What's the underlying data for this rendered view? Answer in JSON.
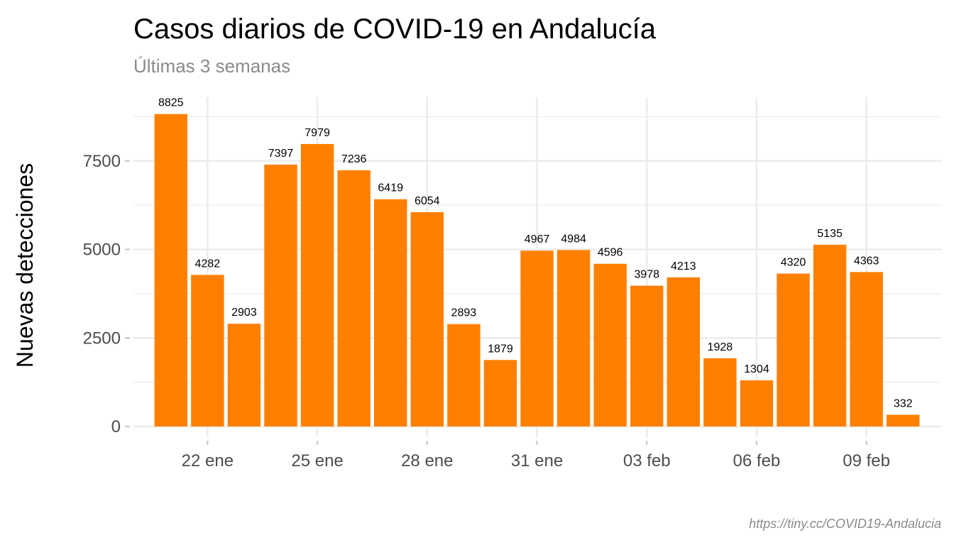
{
  "chart_data": {
    "type": "bar",
    "title": "Casos diarios de COVID-19 en Andalucía",
    "subtitle": "Últimas 3 semanas",
    "xlabel": "",
    "ylabel": "Nuevas detecciones",
    "caption": "https://tiny.cc/COVID19-Andalucia",
    "categories": [
      "2022-01-21",
      "2022-01-22",
      "2022-01-23",
      "2022-01-24",
      "2022-01-25",
      "2022-01-26",
      "2022-01-27",
      "2022-01-28",
      "2022-01-29",
      "2022-01-30",
      "2022-01-31",
      "2022-02-01",
      "2022-02-02",
      "2022-02-03",
      "2022-02-04",
      "2022-02-05",
      "2022-02-06",
      "2022-02-07",
      "2022-02-08",
      "2022-02-09",
      "2022-02-10"
    ],
    "values": [
      8825,
      4282,
      2903,
      7397,
      7979,
      7236,
      6419,
      6054,
      2893,
      1879,
      4967,
      4984,
      4596,
      3978,
      4213,
      1928,
      1304,
      4320,
      5135,
      4363,
      332
    ],
    "data_labels": [
      "8825",
      "4282",
      "2903",
      "7397",
      "7979",
      "7236",
      "6419",
      "6054",
      "2893",
      "1879",
      "4967",
      "4984",
      "4596",
      "3978",
      "4213",
      "1928",
      "1304",
      "4320",
      "5135",
      "4363",
      "332"
    ],
    "x_ticks": [
      {
        "at": "2022-01-22",
        "label": "22 ene"
      },
      {
        "at": "2022-01-25",
        "label": "25 ene"
      },
      {
        "at": "2022-01-28",
        "label": "28 ene"
      },
      {
        "at": "2022-01-31",
        "label": "31 ene"
      },
      {
        "at": "2022-02-03",
        "label": "03 feb"
      },
      {
        "at": "2022-02-06",
        "label": "06 feb"
      },
      {
        "at": "2022-02-09",
        "label": "09 feb"
      }
    ],
    "y_ticks": [
      {
        "value": 0,
        "label": "0"
      },
      {
        "value": 2500,
        "label": "2500"
      },
      {
        "value": 5000,
        "label": "5000"
      },
      {
        "value": 7500,
        "label": "7500"
      }
    ],
    "ylim": [
      -300,
      9300
    ],
    "grid": true,
    "bar_color": "#ff8000",
    "grid_color": "#ebebeb"
  }
}
